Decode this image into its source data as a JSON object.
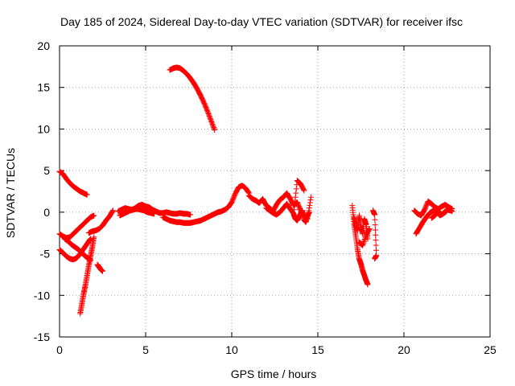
{
  "chart_data": {
    "type": "scatter",
    "title": "Day 185 of 2024, Sidereal Day-to-day VTEC variation (SDTVAR) for receiver ifsc",
    "xlabel": "GPS time / hours",
    "ylabel": "SDTVAR / TECUs",
    "xlim": [
      0,
      25
    ],
    "ylim": [
      -15,
      20
    ],
    "xticks": [
      0,
      5,
      10,
      15,
      20,
      25
    ],
    "yticks": [
      -15,
      -10,
      -5,
      0,
      5,
      10,
      15,
      20
    ],
    "grid": true,
    "marker": "+",
    "series": [
      {
        "name": "SDTVAR",
        "color": "#ff0000",
        "tracks": [
          {
            "x": [
              0.0,
              0.2,
              0.4,
              0.6,
              0.8,
              1.0,
              1.2,
              1.4,
              1.6
            ],
            "y": [
              4.9,
              4.6,
              4.0,
              3.5,
              3.1,
              2.8,
              2.5,
              2.3,
              2.1
            ]
          },
          {
            "x": [
              6.4,
              6.6,
              6.8,
              7.0,
              7.2,
              7.4,
              7.6,
              7.8,
              8.0,
              8.2,
              8.4,
              8.6,
              8.8,
              9.0
            ],
            "y": [
              17.1,
              17.3,
              17.4,
              17.3,
              17.0,
              16.6,
              16.1,
              15.5,
              14.8,
              14.0,
              13.1,
              12.1,
              11.0,
              9.9
            ]
          },
          {
            "x": [
              0.0,
              0.2,
              0.4,
              0.6,
              0.8,
              1.0,
              1.2,
              1.4,
              1.6,
              1.8,
              2.0
            ],
            "y": [
              -2.6,
              -2.9,
              -3.1,
              -3.0,
              -2.6,
              -2.2,
              -1.8,
              -1.4,
              -1.0,
              -0.6,
              -0.4
            ]
          },
          {
            "x": [
              0.0,
              0.2,
              0.4,
              0.6,
              0.8,
              1.0,
              1.2,
              1.4,
              1.6,
              1.8
            ],
            "y": [
              -4.5,
              -4.9,
              -5.3,
              -5.6,
              -5.7,
              -5.5,
              -5.0,
              -4.4,
              -3.8,
              -3.2
            ]
          },
          {
            "x": [
              0.3,
              0.5,
              0.7,
              0.9,
              1.1,
              1.3,
              1.5,
              1.7,
              1.8
            ],
            "y": [
              -3.2,
              -3.5,
              -3.9,
              -4.2,
              -4.5,
              -4.9,
              -5.3,
              -5.6,
              -5.8
            ]
          },
          {
            "x": [
              1.2,
              1.3,
              1.4,
              1.5,
              1.6,
              1.7,
              1.8,
              1.9,
              2.0
            ],
            "y": [
              -12.2,
              -11.0,
              -9.8,
              -8.8,
              -7.6,
              -6.4,
              -5.3,
              -4.2,
              -3.0
            ]
          },
          {
            "x": [
              1.7,
              1.9,
              2.1,
              2.3,
              2.5,
              2.7,
              2.9,
              3.1
            ],
            "y": [
              -2.5,
              -2.3,
              -2.2,
              -2.0,
              -1.6,
              -1.0,
              -0.5,
              0.2
            ]
          },
          {
            "x": [
              2.2,
              2.3,
              2.4,
              2.5
            ],
            "y": [
              -6.3,
              -6.6,
              -6.9,
              -7.1
            ]
          },
          {
            "x": [
              3.4,
              3.6,
              3.8,
              4.0,
              4.2,
              4.4,
              4.6,
              4.8,
              5.0,
              5.2,
              5.4,
              5.6,
              5.8,
              6.0,
              6.2,
              6.4,
              6.6,
              6.8,
              7.0,
              7.2,
              7.4,
              7.6
            ],
            "y": [
              0.1,
              0.3,
              0.5,
              0.4,
              0.3,
              0.5,
              0.8,
              0.9,
              0.7,
              0.6,
              0.3,
              0.1,
              -0.1,
              -0.1,
              0.0,
              -0.1,
              -0.2,
              -0.2,
              -0.1,
              -0.2,
              -0.2,
              -0.3
            ]
          },
          {
            "x": [
              3.5,
              3.7,
              3.9,
              4.1,
              4.3,
              4.5,
              4.7,
              4.9,
              5.1,
              5.3,
              5.5
            ],
            "y": [
              -0.4,
              -0.2,
              0.0,
              0.2,
              0.3,
              0.4,
              0.3,
              0.2,
              0.0,
              -0.1,
              -0.2
            ]
          },
          {
            "x": [
              6.0,
              6.2,
              6.4,
              6.6,
              6.8,
              7.0,
              7.2,
              7.4,
              7.6,
              7.8,
              8.0,
              8.2,
              8.4,
              8.6,
              8.8,
              9.0,
              9.2,
              9.4,
              9.6,
              9.8,
              10.0,
              10.2,
              10.4,
              10.6,
              10.8,
              11.0
            ],
            "y": [
              -0.6,
              -0.8,
              -1.0,
              -1.1,
              -1.2,
              -1.2,
              -1.3,
              -1.3,
              -1.3,
              -1.2,
              -1.1,
              -1.0,
              -0.8,
              -0.6,
              -0.4,
              -0.2,
              0.0,
              0.1,
              0.3,
              0.6,
              1.2,
              2.2,
              3.0,
              3.2,
              2.9,
              2.3
            ]
          },
          {
            "x": [
              11.0,
              11.2,
              11.4,
              11.6,
              11.8,
              12.0,
              12.2,
              12.4,
              12.6,
              12.8,
              13.0,
              13.2,
              13.4,
              13.6,
              13.8,
              14.0,
              14.2,
              14.4,
              14.6
            ],
            "y": [
              2.0,
              1.6,
              1.4,
              1.1,
              1.6,
              0.8,
              0.5,
              0.1,
              0.9,
              1.5,
              1.8,
              2.3,
              1.6,
              0.8,
              1.2,
              0.2,
              -0.5,
              -0.8,
              1.8
            ]
          },
          {
            "x": [
              12.0,
              12.2,
              12.4,
              12.6,
              12.8,
              13.0,
              13.2,
              13.4,
              13.6,
              13.8,
              14.0,
              14.2
            ],
            "y": [
              0.5,
              0.2,
              -0.1,
              -0.3,
              0.0,
              0.5,
              1.0,
              0.4,
              -0.2,
              3.8,
              3.4,
              2.6
            ]
          },
          {
            "x": [
              13.6,
              13.7,
              13.8,
              13.9,
              14.0,
              14.1,
              14.2,
              14.3,
              14.4,
              14.5
            ],
            "y": [
              -0.3,
              -0.8,
              -1.0,
              -0.6,
              -0.2,
              0.2,
              -0.9,
              -1.2,
              -0.4,
              0.0
            ]
          },
          {
            "x": [
              17.0,
              17.1,
              17.2,
              17.3,
              17.4,
              17.5,
              17.6,
              17.7,
              17.8,
              17.9
            ],
            "y": [
              0.8,
              -1.4,
              -2.8,
              -4.4,
              -5.6,
              -6.2,
              -7.0,
              -7.6,
              -8.2,
              -8.7
            ]
          },
          {
            "x": [
              17.1,
              17.2,
              17.3,
              17.4,
              17.5,
              17.6,
              17.7,
              17.8,
              17.9
            ],
            "y": [
              -0.6,
              -1.6,
              -2.2,
              -0.4,
              -1.8,
              -2.6,
              -0.8,
              -1.5,
              -3.2
            ]
          },
          {
            "x": [
              17.4,
              17.6,
              17.8,
              18.0
            ],
            "y": [
              -3.6,
              -4.0,
              -2.8,
              -2.0
            ]
          },
          {
            "x": [
              18.2,
              18.3,
              18.4,
              18.3
            ],
            "y": [
              0.2,
              -0.3,
              -5.2,
              -5.6
            ]
          },
          {
            "x": [
              20.6,
              20.8,
              21.0,
              21.2,
              21.4,
              21.6,
              21.8,
              22.0,
              22.2,
              22.4,
              22.6,
              22.8
            ],
            "y": [
              0.2,
              -0.2,
              -0.4,
              0.3,
              1.3,
              1.0,
              0.6,
              0.4,
              0.7,
              0.9,
              0.6,
              0.4
            ]
          },
          {
            "x": [
              20.7,
              20.9,
              21.1,
              21.3,
              21.5,
              21.7,
              21.9,
              22.1,
              22.3,
              22.5,
              22.7
            ],
            "y": [
              -2.6,
              -1.9,
              -1.2,
              -0.6,
              -0.1,
              0.2,
              0.0,
              -0.4,
              -0.1,
              0.3,
              0.2
            ]
          },
          {
            "x": [
              21.6,
              21.8,
              22.0,
              22.2,
              22.4,
              22.6,
              22.8
            ],
            "y": [
              -0.7,
              -0.4,
              0.1,
              -0.3,
              0.0,
              0.4,
              0.1
            ]
          }
        ]
      }
    ]
  }
}
